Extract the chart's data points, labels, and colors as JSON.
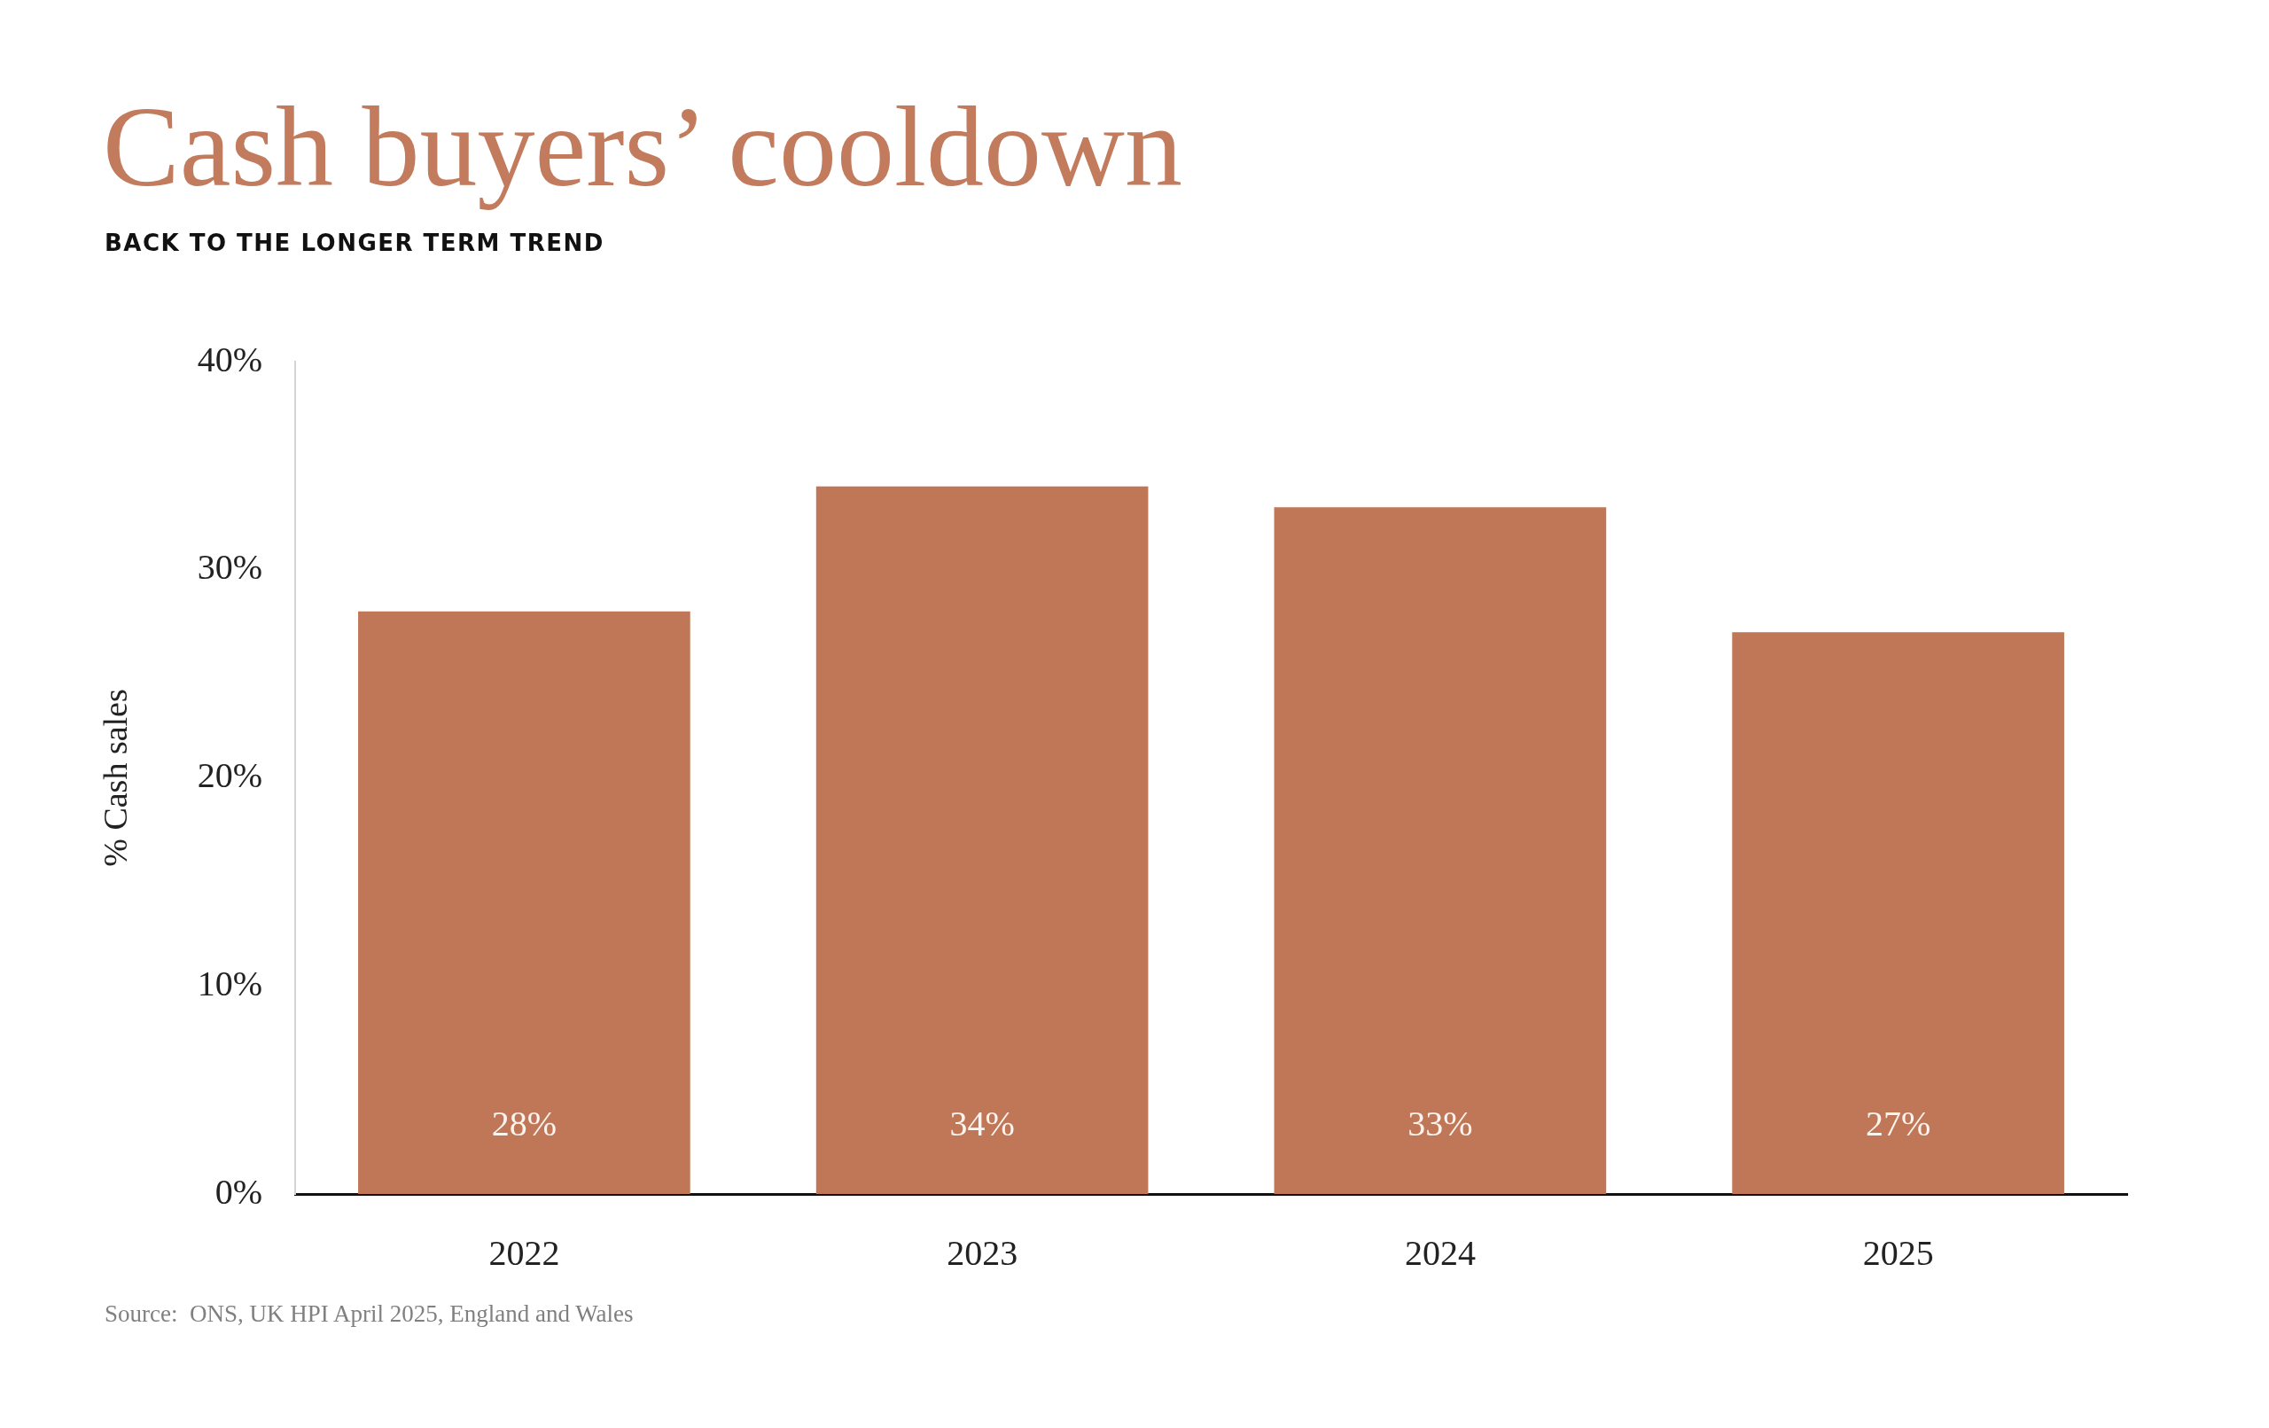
{
  "chart_data": {
    "type": "bar",
    "title": "Cash buyers’ cooldown",
    "subtitle": "BACK TO THE LONGER TERM TREND",
    "ylabel": "% Cash sales",
    "categories": [
      "2022",
      "2023",
      "2024",
      "2025"
    ],
    "values": [
      28,
      34,
      33,
      27
    ],
    "color": "#bf7757",
    "value_labels": [
      "28%",
      "34%",
      "33%",
      "27%"
    ],
    "ylim": [
      0,
      40
    ],
    "yticks": [
      {
        "value": 0,
        "label": "0%"
      },
      {
        "value": 10,
        "label": "10%"
      },
      {
        "value": 20,
        "label": "20%"
      },
      {
        "value": 30,
        "label": "30%"
      },
      {
        "value": 40,
        "label": "40%"
      }
    ],
    "annotations": [
      "Source:  ONS, UK HPI April 2025, England and Wales"
    ]
  }
}
